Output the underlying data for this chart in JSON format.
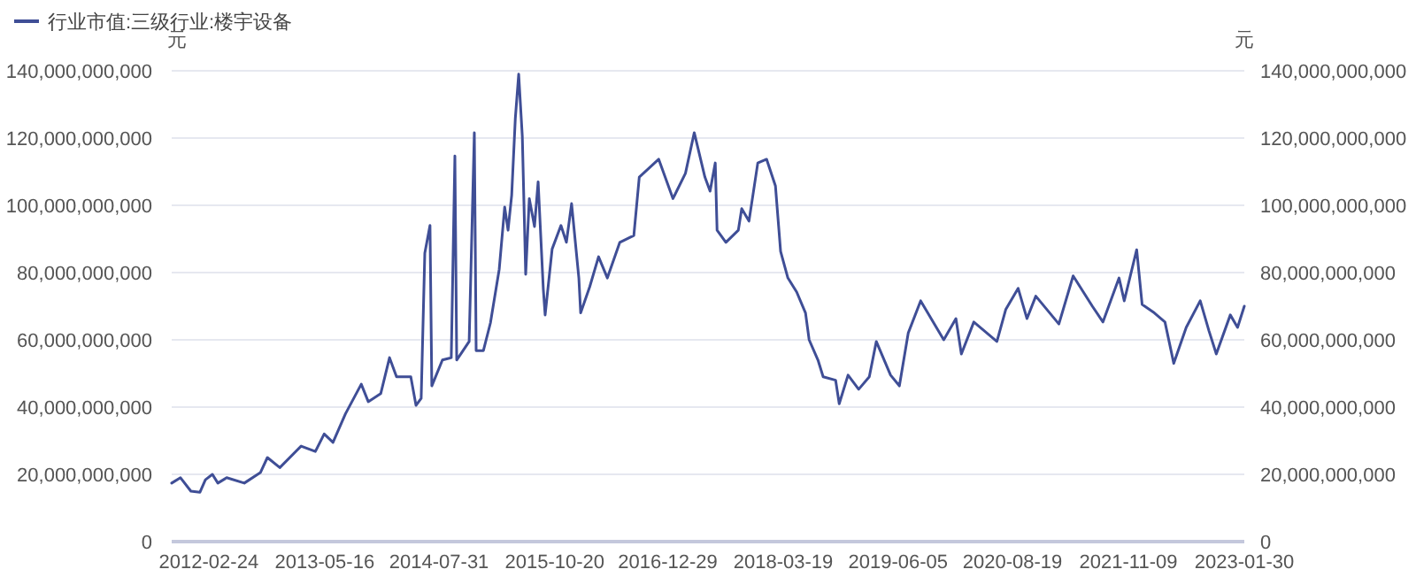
{
  "chart_data": {
    "type": "line",
    "ylabel": "元",
    "y2label": "元",
    "legend": "top left",
    "grid": "y",
    "marker": "none",
    "line_style": "solid",
    "xlim": [
      "2011-10-04",
      "2023-01-30"
    ],
    "xticks": [
      "2012-02-24",
      "2013-05-16",
      "2014-07-31",
      "2015-10-20",
      "2016-12-29",
      "2018-03-19",
      "2019-06-05",
      "2020-08-19",
      "2021-11-09",
      "2023-01-30"
    ],
    "ylim": [
      0,
      140000000000
    ],
    "yticks": [
      0,
      {
        "value": 20000000000,
        "label": "20,000,000,000"
      },
      {
        "value": 40000000000,
        "label": "40,000,000,000"
      },
      {
        "value": 60000000000,
        "label": "60,000,000,000"
      },
      {
        "value": 80000000000,
        "label": "80,000,000,000"
      },
      {
        "value": 100000000000,
        "label": "100,000,000,000"
      },
      {
        "value": 120000000000,
        "label": "120,000,000,000"
      },
      {
        "value": 140000000000,
        "label": "140,000,000,000"
      }
    ],
    "y2lim": [
      0,
      140000000000
    ],
    "y2ticks": [
      0,
      {
        "value": 20000000000,
        "label": "20,000,000,000"
      },
      {
        "value": 40000000000,
        "label": "40,000,000,000"
      },
      {
        "value": 60000000000,
        "label": "60,000,000,000"
      },
      {
        "value": 80000000000,
        "label": "80,000,000,000"
      },
      {
        "value": 100000000000,
        "label": "100,000,000,000"
      },
      {
        "value": 120000000000,
        "label": "120,000,000,000"
      },
      {
        "value": 140000000000,
        "label": "140,000,000,000"
      }
    ],
    "x": [
      "2011-10-04",
      "2011-11-07",
      "2011-12-17",
      "2012-01-21",
      "2012-02-11",
      "2012-03-09",
      "2012-03-30",
      "2012-05-03",
      "2012-07-10",
      "2012-09-10",
      "2012-10-07",
      "2012-11-24",
      "2013-02-14",
      "2013-04-10",
      "2013-05-14",
      "2013-06-17",
      "2013-08-04",
      "2013-10-04",
      "2013-10-31",
      "2013-12-18",
      "2014-01-21",
      "2014-02-17",
      "2014-04-13",
      "2014-05-03",
      "2014-05-23",
      "2014-06-06",
      "2014-06-26",
      "2014-07-03",
      "2014-08-13",
      "2014-09-16",
      "2014-09-30",
      "2014-10-07",
      "2014-11-24",
      "2014-12-14",
      "2014-12-21",
      "2015-01-18",
      "2015-02-14",
      "2015-03-20",
      "2015-04-10",
      "2015-04-23",
      "2015-05-07",
      "2015-05-21",
      "2015-06-03",
      "2015-06-17",
      "2015-06-30",
      "2015-07-14",
      "2015-08-03",
      "2015-08-17",
      "2015-09-06",
      "2015-09-13",
      "2015-10-10",
      "2015-11-13",
      "2015-12-04",
      "2015-12-24",
      "2016-01-21",
      "2016-01-28",
      "2016-03-03",
      "2016-04-06",
      "2016-05-10",
      "2016-06-27",
      "2016-08-20",
      "2016-09-10",
      "2016-11-24",
      "2017-01-18",
      "2017-03-07",
      "2017-04-10",
      "2017-05-21",
      "2017-06-10",
      "2017-06-30",
      "2017-07-07",
      "2017-08-10",
      "2017-09-27",
      "2017-10-10",
      "2017-11-07",
      "2017-12-11",
      "2018-01-14",
      "2018-02-17",
      "2018-03-09",
      "2018-04-06",
      "2018-05-10",
      "2018-06-13",
      "2018-06-27",
      "2018-07-31",
      "2018-08-20",
      "2018-10-07",
      "2018-10-21",
      "2018-11-24",
      "2019-01-04",
      "2019-02-14",
      "2019-03-13",
      "2019-05-07",
      "2019-06-10",
      "2019-07-14",
      "2019-08-31",
      "2019-11-28",
      "2020-01-14",
      "2020-02-04",
      "2020-03-23",
      "2020-06-20",
      "2020-07-24",
      "2020-09-10",
      "2020-10-14",
      "2020-11-17",
      "2021-02-14",
      "2021-04-10",
      "2021-06-23",
      "2021-08-03",
      "2021-10-04",
      "2021-10-24",
      "2021-12-11",
      "2022-01-01",
      "2022-02-17",
      "2022-03-30",
      "2022-05-03",
      "2022-06-20",
      "2022-08-13",
      "2022-09-16",
      "2022-10-14",
      "2022-12-07",
      "2023-01-04",
      "2023-01-30"
    ],
    "series": [
      {
        "name": "行业市值:三级行业:楼宇设备",
        "color": "#3f4e96",
        "values": [
          17400000000,
          19000000000,
          15000000000,
          14700000000,
          18400000000,
          20000000000,
          17400000000,
          19000000000,
          17400000000,
          20500000000,
          25000000000,
          22000000000,
          28400000000,
          26800000000,
          32000000000,
          29500000000,
          38000000000,
          46800000000,
          41600000000,
          44000000000,
          54700000000,
          49000000000,
          49000000000,
          40500000000,
          42600000000,
          85800000000,
          94000000000,
          46300000000,
          54000000000,
          54700000000,
          114700000000,
          54000000000,
          59500000000,
          121600000000,
          56800000000,
          56800000000,
          65000000000,
          81000000000,
          99500000000,
          92600000000,
          103000000000,
          125800000000,
          139000000000,
          120500000000,
          79500000000,
          102000000000,
          93700000000,
          107000000000,
          75000000000,
          67400000000,
          87000000000,
          94000000000,
          89000000000,
          100500000000,
          78400000000,
          68000000000,
          75800000000,
          84700000000,
          78400000000,
          89000000000,
          91000000000,
          108400000000,
          113700000000,
          102000000000,
          109500000000,
          121600000000,
          108400000000,
          104200000000,
          112600000000,
          92600000000,
          89000000000,
          92600000000,
          99000000000,
          95300000000,
          112600000000,
          113700000000,
          105800000000,
          86300000000,
          78400000000,
          74200000000,
          68000000000,
          60000000000,
          54000000000,
          49000000000,
          48000000000,
          41000000000,
          49500000000,
          45300000000,
          49000000000,
          59500000000,
          49500000000,
          46300000000,
          62000000000,
          71600000000,
          60000000000,
          66300000000,
          55800000000,
          65300000000,
          59500000000,
          69000000000,
          75300000000,
          66300000000,
          73000000000,
          64700000000,
          79000000000,
          70000000000,
          65300000000,
          78400000000,
          71600000000,
          86800000000,
          70500000000,
          68000000000,
          65300000000,
          53000000000,
          63700000000,
          71600000000,
          62600000000,
          55800000000,
          67400000000,
          63700000000,
          70000000000
        ]
      }
    ]
  }
}
